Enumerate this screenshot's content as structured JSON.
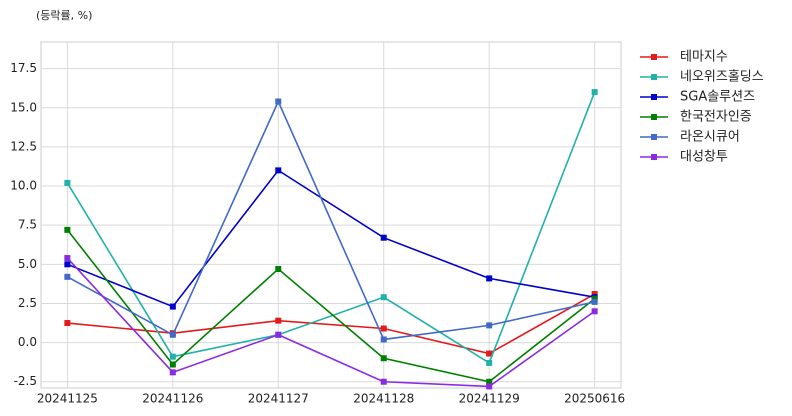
{
  "chart_data": {
    "type": "line",
    "unit_label": "(등락률, %)",
    "categories": [
      "20241125",
      "20241126",
      "20241127",
      "20241128",
      "20241129",
      "20250616"
    ],
    "series": [
      {
        "name": "테마지수",
        "color": "#e31a1c",
        "values": [
          1.25,
          0.6,
          1.4,
          0.9,
          -0.7,
          3.1
        ]
      },
      {
        "name": "네오위즈홀딩스",
        "color": "#20b2aa",
        "values": [
          10.2,
          -0.9,
          0.5,
          2.9,
          -1.3,
          16.0
        ]
      },
      {
        "name": "SGA솔루션즈",
        "color": "#0000cd",
        "values": [
          5.0,
          2.3,
          11.0,
          6.7,
          4.1,
          2.9
        ]
      },
      {
        "name": "한국전자인증",
        "color": "#008000",
        "values": [
          7.2,
          -1.4,
          4.7,
          -1.0,
          -2.5,
          2.8
        ]
      },
      {
        "name": "라온시큐어",
        "color": "#4169c8",
        "values": [
          4.2,
          0.5,
          15.4,
          0.2,
          1.1,
          2.6
        ]
      },
      {
        "name": "대성창투",
        "color": "#8a2be2",
        "values": [
          5.4,
          -1.9,
          0.5,
          -2.5,
          -2.8,
          2.0
        ]
      }
    ],
    "ylim": [
      -2.9,
      19.2
    ],
    "yticks": [
      -2.5,
      {
        "value": 0,
        "label": "0.0"
      },
      2.5,
      {
        "value": 5,
        "label": "5.0"
      },
      7.5,
      {
        "value": 10,
        "label": "10.0"
      },
      12.5,
      {
        "value": 15,
        "label": "15.0"
      },
      17.5
    ],
    "grid": true,
    "legend": "right"
  }
}
